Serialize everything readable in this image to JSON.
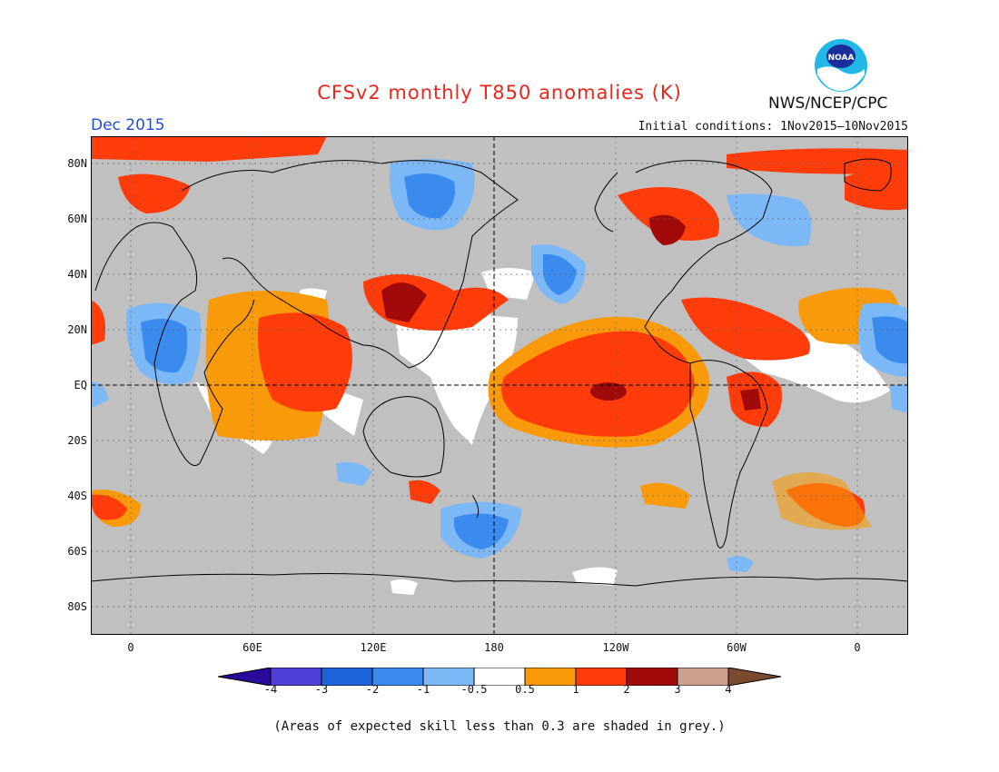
{
  "header": {
    "title": "CFSv2 monthly T850 anomalies (K)",
    "period": "Dec 2015",
    "initial_conditions": "Initial conditions: 1Nov2015–10Nov2015",
    "agency": "NWS/NCEP/CPC",
    "logo_text": "NOAA",
    "logo_icon": "noaa-logo-icon"
  },
  "map": {
    "lat_labels": [
      "80N",
      "60N",
      "40N",
      "20N",
      "EQ",
      "20S",
      "40S",
      "60S",
      "80S"
    ],
    "lon_labels": [
      "0",
      "60E",
      "120E",
      "180",
      "120W",
      "60W",
      "0"
    ],
    "grid": true,
    "projection": "cylindrical equidistant",
    "fill_colors": {
      "grey_low_skill": "#c0c0c0",
      "ocean_land_white": "#ffffff",
      "contour_line": "#000000"
    }
  },
  "colorbar": {
    "ticks": [
      "-4",
      "-3",
      "-2",
      "-1",
      "-0.5",
      "0.5",
      "1",
      "2",
      "3",
      "4"
    ],
    "colors": [
      "#2a0a9a",
      "#5040d8",
      "#1f64d8",
      "#3b8bef",
      "#7bb8f5",
      "#ffffff",
      "#f99a0a",
      "#ff3c0a",
      "#a00a0a",
      "#cc9f8f",
      "#7a4a30"
    ]
  },
  "footnote": "(Areas of expected skill less than 0.3 are shaded in grey.)"
}
